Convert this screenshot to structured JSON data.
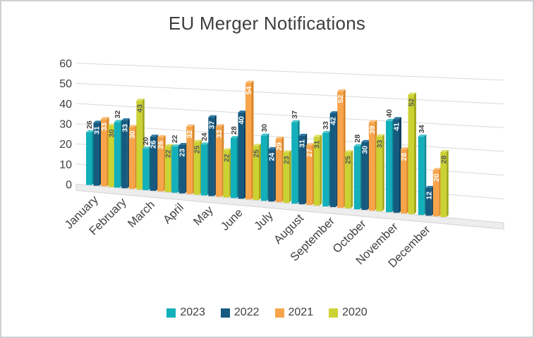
{
  "chart_data": {
    "type": "bar",
    "projection": "3d-clustered-column",
    "title": "EU Merger Notifications",
    "categories": [
      "January",
      "February",
      "March",
      "April",
      "May",
      "June",
      "July",
      "August",
      "September",
      "October",
      "November",
      "December"
    ],
    "series": [
      {
        "name": "2023",
        "color": "#12b0bb",
        "side_color": "#0b8c96",
        "top_color": "#4cc6cd",
        "label_color": "#404040",
        "label_placement": "outside",
        "values": [
          26,
          32,
          20,
          22,
          24,
          28,
          30,
          37,
          33,
          28,
          40,
          34
        ]
      },
      {
        "name": "2022",
        "color": "#165a80",
        "side_color": "#0e4060",
        "top_color": "#2f79a2",
        "label_color": "#ffffff",
        "label_placement": "inside",
        "values": [
          31,
          33,
          26,
          23,
          37,
          40,
          24,
          31,
          42,
          30,
          41,
          12
        ]
      },
      {
        "name": "2021",
        "color": "#f7a44b",
        "side_color": "#da8527",
        "top_color": "#f9bd77",
        "label_color": "#ffffff",
        "label_placement": "inside",
        "values": [
          33,
          30,
          26,
          32,
          33,
          54,
          29,
          27,
          52,
          39,
          28,
          20
        ]
      },
      {
        "name": "2020",
        "color": "#cbd233",
        "side_color": "#a4a91d",
        "top_color": "#dde06b",
        "label_color": "#595959",
        "label_placement": "inside",
        "values": [
          30,
          43,
          22,
          25,
          22,
          25,
          23,
          31,
          25,
          33,
          52,
          28
        ]
      }
    ],
    "xlabel": "",
    "ylabel": "",
    "ylim": [
      0,
      60
    ],
    "yticks": [
      0,
      10,
      20,
      30,
      40,
      50,
      60
    ],
    "grid": true,
    "gridline_color": "#d9d9d9",
    "floor_color": "#ededee",
    "floor_edge_color": "#d2d2d2",
    "axis_text_color": "#404040",
    "legend_position": "bottom"
  }
}
